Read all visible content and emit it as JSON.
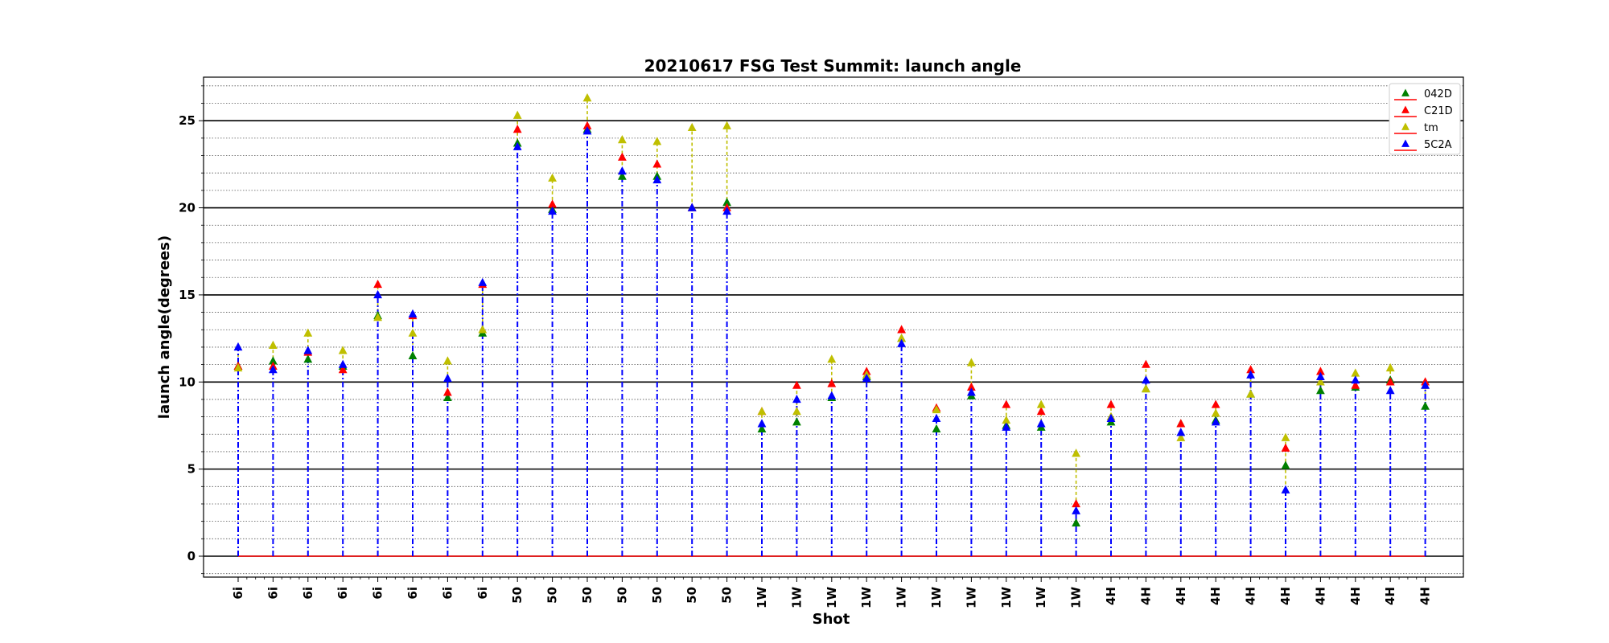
{
  "chart_data": {
    "type": "scatter",
    "title": "20210617 FSG Test Summit: launch angle",
    "xlabel": "Shot",
    "ylabel": "launch angle(degrees)",
    "ylim": [
      -1.2,
      27.5
    ],
    "yticks": [
      0,
      5,
      10,
      15,
      20,
      25
    ],
    "grid": "y-major-solid, y-minor-dotted",
    "legend_position": "top-right",
    "categories": [
      "6i",
      "6i",
      "6i",
      "6i",
      "6i",
      "6i",
      "6i",
      "6i",
      "50",
      "50",
      "50",
      "50",
      "50",
      "50",
      "50",
      "1W",
      "1W",
      "1W",
      "1W",
      "1W",
      "1W",
      "1W",
      "1W",
      "1W",
      "1W",
      "4H",
      "4H",
      "4H",
      "4H",
      "4H",
      "4H",
      "4H",
      "4H",
      "4H",
      "4H"
    ],
    "series": [
      {
        "name": "042D",
        "color": "#008000",
        "marker": "triangle-up",
        "values": [
          10.9,
          11.2,
          11.3,
          10.9,
          13.8,
          11.5,
          9.1,
          12.8,
          23.7,
          19.9,
          24.5,
          21.8,
          21.8,
          20.0,
          20.3,
          7.3,
          7.7,
          9.1,
          10.3,
          12.5,
          7.3,
          9.2,
          7.5,
          7.4,
          1.9,
          7.7,
          9.6,
          7.6,
          7.8,
          9.3,
          5.2,
          9.5,
          9.7,
          10.1,
          8.6
        ]
      },
      {
        "name": "C21D",
        "color": "#ff0000",
        "marker": "triangle-up",
        "values": [
          10.9,
          10.9,
          11.7,
          10.7,
          15.6,
          13.8,
          9.4,
          15.6,
          24.5,
          20.2,
          24.7,
          22.9,
          22.5,
          20.0,
          20.0,
          8.3,
          9.8,
          9.9,
          10.6,
          13.0,
          8.5,
          9.7,
          8.7,
          8.3,
          3.0,
          8.7,
          11.0,
          7.6,
          8.7,
          10.7,
          6.2,
          10.6,
          9.8,
          10.0,
          10.0
        ]
      },
      {
        "name": "tm",
        "color": "#bfbf00",
        "marker": "triangle-up",
        "values": [
          10.8,
          12.1,
          12.8,
          11.8,
          13.7,
          12.8,
          11.2,
          13.0,
          25.3,
          21.7,
          26.3,
          23.9,
          23.8,
          24.6,
          24.7,
          8.3,
          8.3,
          11.3,
          10.4,
          12.5,
          8.4,
          11.1,
          7.8,
          8.7,
          5.9,
          8.0,
          9.6,
          6.8,
          8.2,
          9.3,
          6.8,
          10.0,
          10.5,
          10.8,
          9.8
        ]
      },
      {
        "name": "5C2A",
        "color": "#0000ff",
        "marker": "triangle-up",
        "values": [
          12.0,
          10.7,
          11.8,
          11.0,
          15.0,
          13.9,
          10.2,
          15.7,
          23.5,
          19.8,
          24.4,
          22.1,
          21.6,
          20.0,
          19.8,
          7.6,
          9.0,
          9.2,
          10.2,
          12.2,
          7.9,
          9.4,
          7.4,
          7.6,
          2.6,
          7.9,
          10.1,
          7.1,
          7.7,
          10.4,
          3.8,
          10.3,
          10.1,
          9.5,
          9.8
        ]
      }
    ]
  }
}
